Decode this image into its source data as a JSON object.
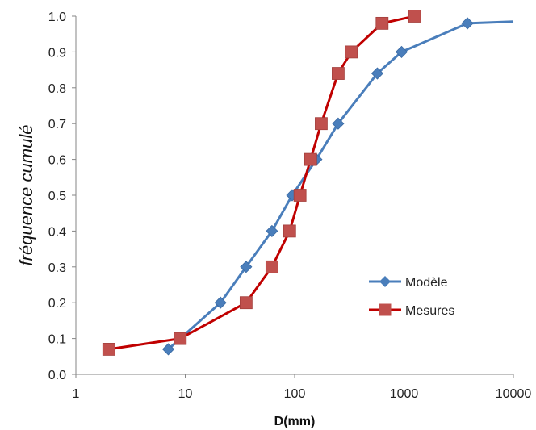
{
  "chart_data": {
    "type": "line",
    "x_scale": "log",
    "xlabel": "D(mm)",
    "ylabel": "fréquence cumulé",
    "xlim": [
      1,
      10000
    ],
    "ylim": [
      0,
      1.0
    ],
    "x_ticks": [
      "1",
      "10",
      "100",
      "1000",
      "10000"
    ],
    "y_ticks": [
      "0.0",
      "0.1",
      "0.2",
      "0.3",
      "0.4",
      "0.5",
      "0.6",
      "0.7",
      "0.8",
      "0.9",
      "1.0"
    ],
    "grid": false,
    "legend_position": "right-lower",
    "series": [
      {
        "name": "Modèle",
        "color": "#4a7ebb",
        "marker": "diamond",
        "points": [
          {
            "x": 7,
            "y": 0.07
          },
          {
            "x": 9,
            "y": 0.1
          },
          {
            "x": 21,
            "y": 0.2
          },
          {
            "x": 36,
            "y": 0.3
          },
          {
            "x": 62,
            "y": 0.4
          },
          {
            "x": 95,
            "y": 0.5
          },
          {
            "x": 158,
            "y": 0.6
          },
          {
            "x": 250,
            "y": 0.7
          },
          {
            "x": 570,
            "y": 0.84
          },
          {
            "x": 950,
            "y": 0.9
          },
          {
            "x": 3800,
            "y": 0.98
          },
          {
            "x": 10000,
            "y": 0.985
          }
        ],
        "marker_count": 11
      },
      {
        "name": "Mesures",
        "color": "#c0504d",
        "line_color": "#c00000",
        "marker": "square",
        "points": [
          {
            "x": 2,
            "y": 0.07
          },
          {
            "x": 9,
            "y": 0.1
          },
          {
            "x": 36,
            "y": 0.2
          },
          {
            "x": 62,
            "y": 0.3
          },
          {
            "x": 90,
            "y": 0.4
          },
          {
            "x": 112,
            "y": 0.5
          },
          {
            "x": 140,
            "y": 0.6
          },
          {
            "x": 175,
            "y": 0.7
          },
          {
            "x": 250,
            "y": 0.84
          },
          {
            "x": 330,
            "y": 0.9
          },
          {
            "x": 630,
            "y": 0.98
          },
          {
            "x": 1250,
            "y": 1.0
          }
        ]
      }
    ]
  }
}
